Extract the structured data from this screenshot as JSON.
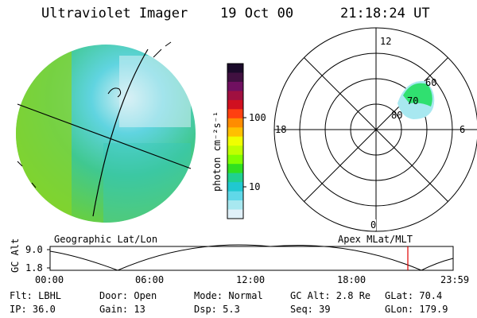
{
  "header": {
    "title": "Ultraviolet Imager",
    "date": "19 Oct 00",
    "time": "21:18:24 UT"
  },
  "left_panel": {
    "caption": "Geographic Lat/Lon"
  },
  "right_panel": {
    "caption": "Apex MLat/MLT",
    "mlt_labels": {
      "top": "12",
      "right": "6",
      "bottom": "0",
      "left": "18"
    },
    "mlat_labels": [
      "60",
      "70",
      "80"
    ]
  },
  "colorbar": {
    "label": "photon cm⁻²s⁻¹",
    "ticks": [
      "100",
      "10"
    ],
    "colors": [
      "#1a0a2a",
      "#401040",
      "#701060",
      "#a01040",
      "#d01020",
      "#ff4010",
      "#ff8c00",
      "#ffc000",
      "#f0ff00",
      "#c0ff00",
      "#80ff00",
      "#30e020",
      "#20d090",
      "#20c8d0",
      "#60d8e8",
      "#a8e8f0",
      "#e0f0f8"
    ]
  },
  "alt_plot": {
    "ylabel": "GC Alt",
    "ytick_top": "9.0",
    "ytick_bottom": "1.8",
    "xticks": [
      "00:00",
      "06:00",
      "12:00",
      "18:00",
      "23:59"
    ],
    "current_fraction": 0.8875,
    "marker_color": "#e00000"
  },
  "info": {
    "row1": {
      "flt": "Flt: LBHL",
      "door": "Door: Open",
      "mode": "Mode: Normal",
      "gcalt": "GC Alt: 2.8 Re",
      "glat": "GLat:  70.4"
    },
    "row2": {
      "ip": "IP: 36.0",
      "gain": "Gain: 13",
      "dsp": "Dsp:    5.3",
      "seq": "Seq: 39",
      "glon": "GLon: 179.9"
    }
  }
}
